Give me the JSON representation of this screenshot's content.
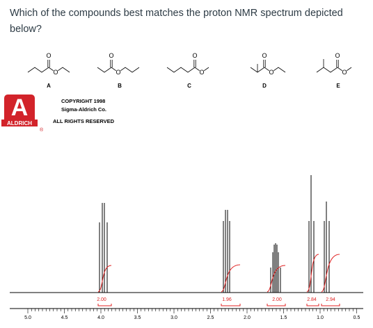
{
  "question": "Which of the compounds best matches the proton NMR spectrum depicted below?",
  "compounds": [
    {
      "label": "A",
      "carbonyl_atom": "O",
      "ester_atom": "O"
    },
    {
      "label": "B",
      "carbonyl_atom": "O",
      "ester_atom": "O"
    },
    {
      "label": "C",
      "carbonyl_atom": "O",
      "ester_atom": "O"
    },
    {
      "label": "D",
      "carbonyl_atom": "O",
      "ester_atom": "O"
    },
    {
      "label": "E",
      "carbonyl_atom": "O",
      "ester_atom": "O"
    }
  ],
  "logo": {
    "letter": "A",
    "name": "ALDRICH",
    "mark": "®"
  },
  "copyright": [
    "COPYRIGHT 1998",
    "Sigma-Aldrich Co.",
    "ALL RIGHTS RESERVED"
  ],
  "integrations": [
    "2.00",
    "1.96",
    "2.00",
    "2.84",
    "2.94"
  ],
  "axis_labels": [
    "5.0",
    "4.5",
    "4.0",
    "3.5",
    "3.0",
    "2.5",
    "2.0",
    "1.5",
    "1.0",
    "0.5"
  ]
}
